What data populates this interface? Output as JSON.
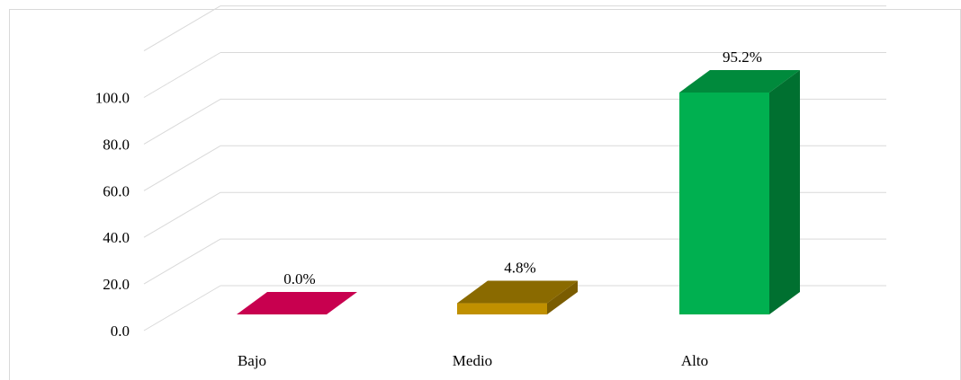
{
  "chart_data": {
    "type": "bar",
    "categories": [
      "Bajo",
      "Medio",
      "Alto"
    ],
    "values": [
      0.0,
      4.8,
      95.2
    ],
    "value_labels": [
      "0.0%",
      "4.8%",
      "95.2%"
    ],
    "y_ticks": [
      "0.0",
      "20.0",
      "40.0",
      "60.0",
      "80.0",
      "100.0"
    ],
    "ylim": [
      0,
      100
    ],
    "grid": true,
    "style": "3d-column",
    "colors": {
      "bars": [
        "#c0004e",
        "#c09000",
        "#00b050"
      ],
      "bar_tops": [
        "#c8004f",
        "#8a6a00",
        "#008a3c"
      ],
      "bar_sides": [
        "#900038",
        "#7a5c00",
        "#007030"
      ],
      "grid": "#d9d9d9",
      "frame": "#d9d9d9"
    }
  }
}
